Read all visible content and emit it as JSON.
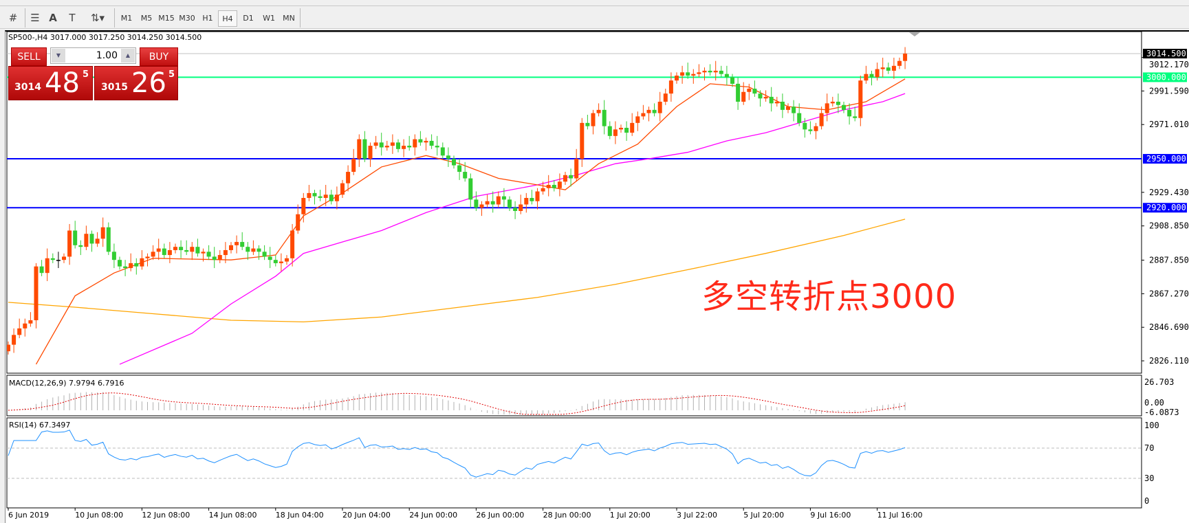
{
  "toolbar": {
    "tools": [
      "crosshair-icon",
      "fibonacci-icon",
      "text-icon",
      "text-label-icon",
      "arrows-icon"
    ],
    "text_tool": "A",
    "timeframes": [
      "M1",
      "M5",
      "M15",
      "M30",
      "H1",
      "H4",
      "D1",
      "W1",
      "MN"
    ],
    "selected_timeframe": "H4"
  },
  "chart": {
    "title": "SP500-,H4  3017.000 3017.250 3014.250 3014.500",
    "annotation": "多空转折点3000",
    "colors": {
      "bull": "#ff4a00",
      "bear": "#32cd32",
      "doji": "#000000",
      "ma_fast": "#ff4a00",
      "ma_mid": "#ff00ff",
      "ma_slow": "#ffa500",
      "level_3000": "#00ff7f",
      "level_blue": "#0000ff",
      "bid": "#c0c0c0"
    },
    "price_axis": [
      "3012.170",
      "2991.590",
      "2971.010",
      "2929.430",
      "2908.850",
      "2887.850",
      "2867.270",
      "2846.690",
      "2826.110"
    ],
    "price_axis_values": [
      3012.17,
      2991.59,
      2971.01,
      2929.43,
      2908.85,
      2887.85,
      2867.27,
      2846.69,
      2826.11
    ],
    "bid": {
      "label": "3014.500",
      "value": 3014.5
    },
    "levels": [
      {
        "label": "3000.000",
        "value": 3000,
        "color": "#00ff7f"
      },
      {
        "label": "2950.000",
        "value": 2950,
        "color": "#0000ff"
      },
      {
        "label": "2920.000",
        "value": 2920,
        "color": "#0000ff"
      }
    ],
    "closes": [
      2836,
      2842,
      2846,
      2849,
      2851,
      2884,
      2880,
      2889,
      2888,
      2888,
      2890,
      2906,
      2897,
      2896,
      2904,
      2898,
      2901,
      2908,
      2893,
      2888,
      2884,
      2883,
      2886,
      2884,
      2889,
      2890,
      2893,
      2895,
      2891,
      2894,
      2896,
      2894,
      2893,
      2896,
      2892,
      2893,
      2890,
      2888,
      2891,
      2894,
      2897,
      2899,
      2896,
      2893,
      2895,
      2893,
      2890,
      2888,
      2886,
      2887,
      2889,
      2906,
      2916,
      2926,
      2929,
      2927,
      2926,
      2928,
      2924,
      2928,
      2935,
      2942,
      2950,
      2962,
      2950,
      2958,
      2960,
      2957,
      2958,
      2960,
      2956,
      2958,
      2957,
      2962,
      2960,
      2961,
      2958,
      2957,
      2952,
      2950,
      2946,
      2942,
      2938,
      2925,
      2920,
      2922,
      2924,
      2922,
      2927,
      2925,
      2920,
      2918,
      2922,
      2926,
      2924,
      2930,
      2932,
      2934,
      2932,
      2936,
      2940,
      2938,
      2950,
      2972,
      2970,
      2978,
      2980,
      2970,
      2964,
      2968,
      2969,
      2966,
      2972,
      2976,
      2978,
      2980,
      2978,
      2985,
      2990,
      2998,
      3001,
      3003,
      3001,
      3002,
      3003,
      3004,
      3003,
      3004,
      3002,
      3000,
      2996,
      2985,
      2991,
      2993,
      2990,
      2987,
      2988,
      2984,
      2985,
      2980,
      2982,
      2978,
      2972,
      2968,
      2967,
      2970,
      2978,
      2984,
      2985,
      2983,
      2980,
      2976,
      2975,
      2998,
      3002,
      3000,
      3005,
      3006,
      3004,
      3007,
      3010,
      3014.5
    ],
    "ma_fast": [
      [
        5,
        2824
      ],
      [
        12,
        2866
      ],
      [
        19,
        2880
      ],
      [
        26,
        2889
      ],
      [
        40,
        2888
      ],
      [
        48,
        2891
      ],
      [
        53,
        2915
      ],
      [
        60,
        2929
      ],
      [
        67,
        2945
      ],
      [
        75,
        2952
      ],
      [
        81,
        2947
      ],
      [
        88,
        2938
      ],
      [
        95,
        2934
      ],
      [
        100,
        2931
      ],
      [
        106,
        2947
      ],
      [
        113,
        2959
      ],
      [
        120,
        2982
      ],
      [
        126,
        2996
      ],
      [
        133,
        2994
      ],
      [
        140,
        2982
      ],
      [
        147,
        2980
      ],
      [
        154,
        2985
      ],
      [
        161,
        2999
      ]
    ],
    "ma_mid": [
      [
        20,
        2824
      ],
      [
        33,
        2843
      ],
      [
        40,
        2861
      ],
      [
        48,
        2878
      ],
      [
        53,
        2892
      ],
      [
        67,
        2906
      ],
      [
        75,
        2917
      ],
      [
        84,
        2927
      ],
      [
        95,
        2934
      ],
      [
        102,
        2940
      ],
      [
        109,
        2947
      ],
      [
        115,
        2950
      ],
      [
        122,
        2954
      ],
      [
        129,
        2961
      ],
      [
        136,
        2966
      ],
      [
        143,
        2973
      ],
      [
        150,
        2980
      ],
      [
        157,
        2985
      ],
      [
        161,
        2990
      ]
    ],
    "ma_slow": [
      [
        0,
        2862
      ],
      [
        12,
        2859
      ],
      [
        26,
        2855
      ],
      [
        40,
        2851
      ],
      [
        53,
        2850
      ],
      [
        67,
        2853
      ],
      [
        81,
        2859
      ],
      [
        95,
        2865
      ],
      [
        109,
        2873
      ],
      [
        122,
        2882
      ],
      [
        136,
        2892
      ],
      [
        150,
        2903
      ],
      [
        161,
        2913
      ]
    ],
    "time_axis": [
      "6 Jun 2019",
      "10 Jun 08:00",
      "12 Jun 08:00",
      "14 Jun 08:00",
      "18 Jun 04:00",
      "20 Jun 04:00",
      "24 Jun 00:00",
      "26 Jun 00:00",
      "28 Jun 00:00",
      "1 Jul 20:00",
      "3 Jul 22:00",
      "5 Jul 20:00",
      "9 Jul 16:00",
      "11 Jul 16:00"
    ]
  },
  "macd": {
    "label": "MACD(12,26,9) 7.9794 6.7916",
    "axis_max": "26.703",
    "axis_zero": "0.00",
    "axis_min": "-6.0873"
  },
  "rsi": {
    "label": "RSI(14) 67.3497",
    "axis": [
      "100",
      "70",
      "30",
      "0"
    ]
  },
  "trade": {
    "sell": "SELL",
    "buy": "BUY",
    "lot": "1.00",
    "sell_prefix": "3014",
    "sell_big": "48",
    "sell_sup": "5",
    "buy_prefix": "3015",
    "buy_big": "26",
    "buy_sup": "5"
  }
}
